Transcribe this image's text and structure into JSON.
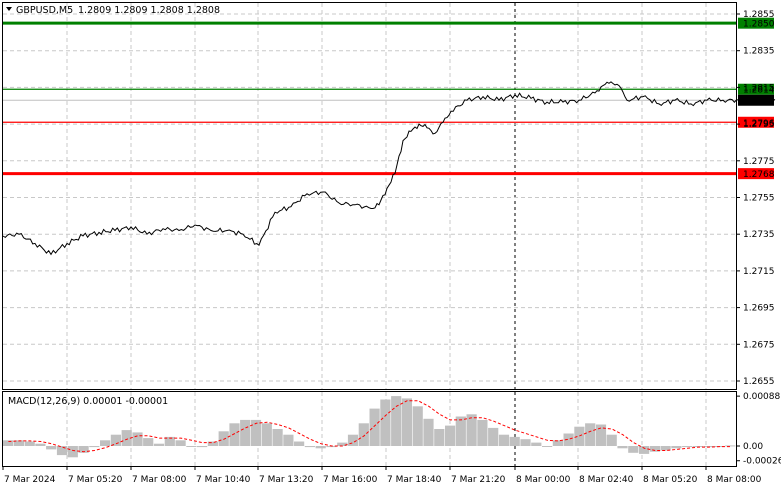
{
  "header": {
    "arrow_icon": "triangle-down-icon",
    "symbol_tf": "GBPUSD,M5",
    "ohlc": "1.2809 1.2809 1.2808 1.2808"
  },
  "macd": {
    "label": "MACD(12,26,9) 0.00001 -0.00001"
  },
  "colors": {
    "grid": "#c8c8c8",
    "price_line": "#000000",
    "green_level": "#008000",
    "red_level": "#ff0000",
    "current_price_line": "#c0c0c0",
    "histogram": "#c0c0c0",
    "signal": "#ff0000"
  },
  "chart_data": [
    {
      "type": "line",
      "title": "",
      "xlabel": "",
      "ylabel": "",
      "ylim": [
        1.2648,
        1.2862
      ],
      "y_ticks": [
        "1.2855",
        "1.2835",
        "1.2815",
        "1.2795",
        "1.2775",
        "1.2755",
        "1.2735",
        "1.2715",
        "1.2695",
        "1.2675",
        "1.2655"
      ],
      "x_ticks": [
        "7 Mar 2024",
        "7 Mar 05:20",
        "7 Mar 08:00",
        "7 Mar 10:40",
        "7 Mar 13:20",
        "7 Mar 16:00",
        "7 Mar 18:40",
        "7 Mar 21:20",
        "8 Mar 00:00",
        "8 Mar 02:40",
        "8 Mar 05:20",
        "8 Mar 08:00"
      ],
      "grid": true,
      "day_separator": "8 Mar 00:00",
      "series": [
        {
          "x": [
            "7 Mar 2024",
            "7 Mar 00:40",
            "7 Mar 01:20",
            "7 Mar 02:00",
            "7 Mar 02:40",
            "7 Mar 03:20",
            "7 Mar 04:00",
            "7 Mar 04:40",
            "7 Mar 05:20",
            "7 Mar 06:00",
            "7 Mar 06:40",
            "7 Mar 07:20",
            "7 Mar 08:00",
            "7 Mar 08:40",
            "7 Mar 09:20",
            "7 Mar 10:00",
            "7 Mar 10:40",
            "7 Mar 11:20",
            "7 Mar 12:00",
            "7 Mar 12:40",
            "7 Mar 13:20",
            "7 Mar 14:00",
            "7 Mar 14:40",
            "7 Mar 15:20",
            "7 Mar 15:40",
            "7 Mar 16:00",
            "7 Mar 16:20",
            "7 Mar 16:40",
            "7 Mar 17:00",
            "7 Mar 17:20",
            "7 Mar 17:40",
            "7 Mar 18:00",
            "7 Mar 18:20",
            "7 Mar 18:40",
            "7 Mar 19:20",
            "7 Mar 20:00",
            "7 Mar 20:40",
            "7 Mar 21:20",
            "7 Mar 22:00",
            "7 Mar 22:40",
            "7 Mar 23:20",
            "8 Mar 00:00",
            "8 Mar 00:40",
            "8 Mar 01:00",
            "8 Mar 01:20",
            "8 Mar 01:40",
            "8 Mar 02:00",
            "8 Mar 02:40",
            "8 Mar 03:20",
            "8 Mar 04:00",
            "8 Mar 04:40",
            "8 Mar 05:20",
            "8 Mar 06:00",
            "8 Mar 06:40",
            "8 Mar 07:20",
            "8 Mar 08:00",
            "8 Mar 08:10"
          ],
          "values": [
            1.2734,
            1.2735,
            1.273,
            1.2724,
            1.273,
            1.2734,
            1.2736,
            1.2737,
            1.2739,
            1.2735,
            1.2738,
            1.2737,
            1.274,
            1.2737,
            1.2737,
            1.2735,
            1.2729,
            1.2747,
            1.275,
            1.2757,
            1.2758,
            1.2752,
            1.2751,
            1.2749,
            1.2751,
            1.276,
            1.2768,
            1.2786,
            1.2791,
            1.2795,
            1.2793,
            1.279,
            1.2796,
            1.2802,
            1.2808,
            1.281,
            1.2808,
            1.2811,
            1.2809,
            1.2807,
            1.2807,
            1.2808,
            1.2812,
            1.2816,
            1.2818,
            1.2816,
            1.2808,
            1.281,
            1.2806,
            1.2808,
            1.2806,
            1.2808,
            1.2808,
            1.2808,
            1.2806,
            1.2808,
            1.2808
          ]
        }
      ],
      "levels": [
        {
          "value": 1.285,
          "label": "1.2850",
          "color": "#008000",
          "style": "thick"
        },
        {
          "value": 1.2814,
          "label": "1.2814",
          "color": "#008000",
          "style": "thin"
        },
        {
          "value": 1.2808,
          "label": "1.2808",
          "color": "#c0c0c0",
          "style": "current"
        },
        {
          "value": 1.2796,
          "label": "1.2796",
          "color": "#ff0000",
          "style": "thin"
        },
        {
          "value": 1.2768,
          "label": "1.2768",
          "color": "#ff0000",
          "style": "thick"
        }
      ]
    },
    {
      "type": "bar",
      "title": "MACD(12,26,9) 0.00001 -0.00001",
      "ylim": [
        -0.0003,
        0.0009
      ],
      "y_ticks": [
        "0.00088",
        "0.00",
        "-0.00026"
      ],
      "series": [
        {
          "name": "MACD",
          "type": "bar",
          "values": [
            0.0001,
            0.0001,
            8e-05,
            4e-05,
            -6e-05,
            -0.00016,
            -0.0002,
            -0.00012,
            -2e-05,
            0.0001,
            0.0002,
            0.00028,
            0.00024,
            0.00014,
            4e-05,
            0.00016,
            0.0001,
            0.0,
            -2e-05,
            8e-05,
            0.00026,
            0.0004,
            0.00046,
            0.00046,
            0.0004,
            0.0003,
            0.0002,
            8e-05,
            -2e-05,
            -4e-05,
            -2e-05,
            6e-05,
            0.0002,
            0.0004,
            0.00066,
            0.00082,
            0.00088,
            0.00084,
            0.0007,
            0.00048,
            0.0003,
            0.00036,
            0.00052,
            0.00056,
            0.00046,
            0.00032,
            0.0002,
            0.00016,
            0.00012,
            6e-05,
            0.0,
            0.0001,
            0.00022,
            0.00034,
            0.0004,
            0.00038,
            0.0002,
            -4e-05,
            -0.00012,
            -0.00014,
            -0.0001,
            -8e-05,
            -4e-05,
            -2e-05,
            0.0,
            -2e-05,
            0.0,
            1e-05
          ]
        },
        {
          "name": "Signal",
          "type": "line",
          "values": [
            8e-05,
            9e-05,
            9e-05,
            8e-05,
            4e-05,
            -2e-05,
            -8e-05,
            -0.0001,
            -8e-05,
            -3e-05,
            4e-05,
            0.00012,
            0.00018,
            0.00018,
            0.00014,
            0.00014,
            0.00014,
            0.0001,
            6e-05,
            6e-05,
            0.00012,
            0.00022,
            0.00032,
            0.0004,
            0.00042,
            0.00038,
            0.00032,
            0.00022,
            0.00012,
            4e-05,
            0.0,
            0.0,
            6e-05,
            0.00018,
            0.00036,
            0.00054,
            0.0007,
            0.0008,
            0.0008,
            0.0007,
            0.00056,
            0.00046,
            0.00046,
            0.0005,
            0.0005,
            0.00044,
            0.00036,
            0.00028,
            0.00022,
            0.00016,
            0.0001,
            9e-05,
            0.00012,
            0.00018,
            0.00026,
            0.00032,
            0.0003,
            0.0002,
            6e-05,
            -4e-05,
            -8e-05,
            -8e-05,
            -6e-05,
            -4e-05,
            -2e-05,
            -2e-05,
            -1e-05,
            -1e-05
          ]
        }
      ]
    }
  ]
}
